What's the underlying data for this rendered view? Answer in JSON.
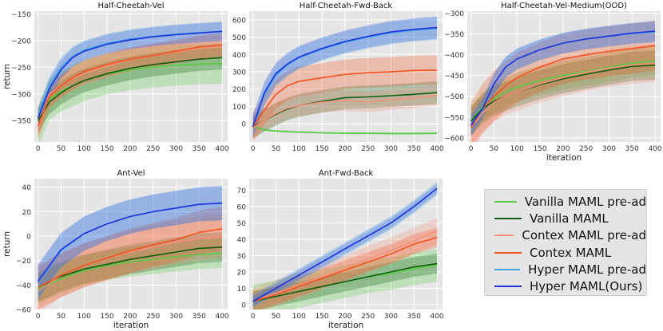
{
  "chart_data": [
    {
      "type": "line",
      "title": "Half-Cheetah-Vel",
      "xlabel": "",
      "ylabel": "return",
      "xlim": [
        -8,
        412
      ],
      "ylim": [
        -390,
        -145
      ],
      "xticks": [
        0,
        50,
        100,
        150,
        200,
        250,
        300,
        350,
        400
      ],
      "yticks": [
        -350,
        -300,
        -250,
        -200,
        -150
      ],
      "series": [
        {
          "name": "Vanilla MAML pre-ad",
          "x": [
            0,
            25,
            50,
            75,
            100,
            150,
            200,
            250,
            300,
            350,
            400
          ],
          "y": [
            -360,
            -310,
            -295,
            -285,
            -275,
            -263,
            -255,
            -250,
            -246,
            -244,
            -243
          ],
          "band": 38
        },
        {
          "name": "Vanilla MAML",
          "x": [
            0,
            25,
            50,
            75,
            100,
            150,
            200,
            250,
            300,
            350,
            400
          ],
          "y": [
            -350,
            -315,
            -298,
            -285,
            -275,
            -262,
            -252,
            -245,
            -240,
            -235,
            -232
          ],
          "band": 22
        },
        {
          "name": "Contex MAML pre-ad",
          "x": [
            0,
            25,
            50,
            75,
            100,
            150,
            200,
            250,
            300,
            350,
            400
          ],
          "y": [
            -365,
            -300,
            -285,
            -272,
            -262,
            -248,
            -236,
            -228,
            -222,
            -215,
            -212
          ],
          "band": 22
        },
        {
          "name": "Contex MAML",
          "x": [
            0,
            25,
            50,
            75,
            100,
            150,
            200,
            250,
            300,
            350,
            400
          ],
          "y": [
            -360,
            -305,
            -285,
            -270,
            -258,
            -245,
            -235,
            -228,
            -220,
            -212,
            -208
          ],
          "band": 22
        },
        {
          "name": "Hyper MAML pre-ad",
          "x": [
            0,
            25,
            50,
            75,
            100,
            150,
            200,
            250,
            300,
            350,
            400
          ],
          "y": [
            -345,
            -285,
            -250,
            -230,
            -218,
            -205,
            -197,
            -192,
            -188,
            -185,
            -183
          ],
          "band": 18
        },
        {
          "name": "Hyper MAML(Ours)",
          "x": [
            0,
            25,
            50,
            75,
            100,
            150,
            200,
            250,
            300,
            350,
            400
          ],
          "y": [
            -345,
            -290,
            -255,
            -232,
            -220,
            -207,
            -199,
            -193,
            -189,
            -186,
            -183
          ],
          "band": 18
        }
      ]
    },
    {
      "type": "line",
      "title": "Half-Cheetah-Fwd-Back",
      "xlabel": "",
      "ylabel": "",
      "xlim": [
        -8,
        412
      ],
      "ylim": [
        -105,
        650
      ],
      "xticks": [
        0,
        50,
        100,
        150,
        200,
        250,
        300,
        350,
        400
      ],
      "yticks": [
        0,
        100,
        200,
        300,
        400,
        500,
        600
      ],
      "series": [
        {
          "name": "Vanilla MAML pre-ad",
          "x": [
            0,
            25,
            50,
            100,
            150,
            200,
            250,
            300,
            350,
            400
          ],
          "y": [
            -15,
            -35,
            -42,
            -48,
            -52,
            -55,
            -55,
            -56,
            -56,
            -55
          ],
          "band": 6
        },
        {
          "name": "Vanilla MAML",
          "x": [
            0,
            25,
            50,
            75,
            100,
            150,
            200,
            250,
            300,
            350,
            400
          ],
          "y": [
            -20,
            20,
            55,
            85,
            105,
            130,
            150,
            155,
            162,
            170,
            180
          ],
          "band": 65
        },
        {
          "name": "Contex MAML pre-ad",
          "x": [
            0,
            25,
            50,
            75,
            100,
            150,
            200,
            250,
            300,
            350,
            400
          ],
          "y": [
            -25,
            20,
            60,
            90,
            105,
            125,
            135,
            125,
            140,
            150,
            165
          ],
          "band": 60
        },
        {
          "name": "Contex MAML",
          "x": [
            0,
            25,
            50,
            75,
            100,
            150,
            200,
            250,
            300,
            350,
            400
          ],
          "y": [
            -20,
            80,
            170,
            220,
            245,
            265,
            285,
            295,
            300,
            308,
            310
          ],
          "band": 85
        },
        {
          "name": "Hyper MAML pre-ad",
          "x": [
            0,
            25,
            50,
            75,
            100,
            150,
            200,
            250,
            300,
            350,
            400
          ],
          "y": [
            -15,
            170,
            280,
            340,
            380,
            430,
            470,
            500,
            525,
            540,
            550
          ],
          "band": 65
        },
        {
          "name": "Hyper MAML(Ours)",
          "x": [
            0,
            25,
            50,
            75,
            100,
            150,
            200,
            250,
            300,
            350,
            400
          ],
          "y": [
            -15,
            180,
            290,
            345,
            385,
            435,
            475,
            505,
            530,
            545,
            555
          ],
          "band": 65
        }
      ]
    },
    {
      "type": "line",
      "title": "Half-Cheetah-Vel-Medium(OOD)",
      "xlabel": "iteration",
      "ylabel": "",
      "xlim": [
        -8,
        412
      ],
      "ylim": [
        -610,
        -295
      ],
      "xticks": [
        0,
        50,
        100,
        150,
        200,
        250,
        300,
        350,
        400
      ],
      "yticks": [
        -600,
        -550,
        -500,
        -450,
        -400,
        -350,
        -300
      ],
      "series": [
        {
          "name": "Vanilla MAML pre-ad",
          "x": [
            0,
            25,
            50,
            75,
            100,
            150,
            200,
            250,
            300,
            350,
            400
          ],
          "y": [
            -560,
            -525,
            -505,
            -490,
            -478,
            -462,
            -450,
            -440,
            -430,
            -420,
            -415
          ],
          "band": 35
        },
        {
          "name": "Vanilla MAML",
          "x": [
            0,
            25,
            50,
            75,
            100,
            150,
            200,
            250,
            300,
            350,
            400
          ],
          "y": [
            -560,
            -530,
            -512,
            -500,
            -490,
            -472,
            -458,
            -447,
            -437,
            -428,
            -425
          ],
          "band": 35
        },
        {
          "name": "Contex MAML pre-ad",
          "x": [
            0,
            25,
            50,
            75,
            100,
            150,
            200,
            250,
            300,
            350,
            400
          ],
          "y": [
            -575,
            -540,
            -515,
            -500,
            -490,
            -470,
            -455,
            -442,
            -432,
            -425,
            -420
          ],
          "band": 45
        },
        {
          "name": "Contex MAML",
          "x": [
            0,
            25,
            50,
            75,
            100,
            150,
            200,
            250,
            300,
            350,
            400
          ],
          "y": [
            -575,
            -530,
            -500,
            -475,
            -455,
            -430,
            -410,
            -400,
            -392,
            -385,
            -378
          ],
          "band": 60
        },
        {
          "name": "Hyper MAML pre-ad",
          "x": [
            0,
            25,
            50,
            75,
            100,
            150,
            200,
            250,
            300,
            350,
            400
          ],
          "y": [
            -570,
            -530,
            -470,
            -430,
            -410,
            -388,
            -372,
            -362,
            -355,
            -349,
            -345
          ],
          "band": 25
        },
        {
          "name": "Hyper MAML(Ours)",
          "x": [
            0,
            25,
            50,
            75,
            100,
            150,
            200,
            250,
            300,
            350,
            400
          ],
          "y": [
            -570,
            -530,
            -470,
            -430,
            -410,
            -388,
            -372,
            -362,
            -355,
            -348,
            -343
          ],
          "band": 25
        }
      ]
    },
    {
      "type": "line",
      "title": "Ant-Vel",
      "xlabel": "iteration",
      "ylabel": "return",
      "xlim": [
        -8,
        412
      ],
      "ylim": [
        -60,
        47
      ],
      "xticks": [
        0,
        50,
        100,
        150,
        200,
        250,
        300,
        350,
        400
      ],
      "yticks": [
        -60,
        -40,
        -20,
        0,
        20,
        40
      ],
      "series": [
        {
          "name": "Vanilla MAML pre-ad",
          "x": [
            0,
            50,
            100,
            150,
            200,
            250,
            300,
            350,
            400
          ],
          "y": [
            -43,
            -35,
            -28,
            -24,
            -21,
            -19,
            -17,
            -15,
            -14
          ],
          "band": 12
        },
        {
          "name": "Vanilla MAML",
          "x": [
            0,
            50,
            100,
            150,
            200,
            250,
            300,
            350,
            400
          ],
          "y": [
            -42,
            -33,
            -27,
            -23,
            -19,
            -16,
            -13,
            -10,
            -9
          ],
          "band": 12
        },
        {
          "name": "Contex MAML pre-ad",
          "x": [
            0,
            50,
            100,
            150,
            200,
            250,
            300,
            350,
            400
          ],
          "y": [
            -45,
            -32,
            -24,
            -18,
            -13,
            -9,
            -5,
            -2,
            0
          ],
          "band": 18
        },
        {
          "name": "Contex MAML",
          "x": [
            0,
            50,
            100,
            150,
            200,
            250,
            300,
            350,
            400
          ],
          "y": [
            -42,
            -32,
            -24,
            -18,
            -12,
            -7,
            -3,
            3,
            6
          ],
          "band": 18
        },
        {
          "name": "Hyper MAML pre-ad",
          "x": [
            0,
            50,
            100,
            150,
            200,
            250,
            300,
            350,
            400
          ],
          "y": [
            -38,
            -12,
            2,
            10,
            16,
            20,
            23,
            26,
            27
          ],
          "band": 14
        },
        {
          "name": "Hyper MAML(Ours)",
          "x": [
            0,
            50,
            100,
            150,
            200,
            250,
            300,
            350,
            400
          ],
          "y": [
            -37,
            -11,
            2,
            10,
            16,
            20,
            23,
            26,
            27
          ],
          "band": 14
        }
      ]
    },
    {
      "type": "line",
      "title": "Ant-Fwd-Back",
      "xlabel": "iteration",
      "ylabel": "",
      "xlim": [
        -8,
        412
      ],
      "ylim": [
        -3,
        77
      ],
      "xticks": [
        0,
        50,
        100,
        150,
        200,
        250,
        300,
        350,
        400
      ],
      "yticks": [
        0,
        10,
        20,
        30,
        40,
        50,
        60,
        70
      ],
      "series": [
        {
          "name": "Vanilla MAML pre-ad",
          "x": [
            0,
            50,
            100,
            150,
            200,
            250,
            300,
            350,
            400
          ],
          "y": [
            2,
            5,
            8,
            11,
            14,
            17,
            19,
            22,
            24
          ],
          "band": 10
        },
        {
          "name": "Vanilla MAML",
          "x": [
            0,
            50,
            100,
            150,
            200,
            250,
            300,
            350,
            400
          ],
          "y": [
            2,
            5,
            8,
            11,
            14,
            17,
            20,
            23,
            25
          ],
          "band": 6
        },
        {
          "name": "Contex MAML pre-ad",
          "x": [
            0,
            50,
            100,
            150,
            200,
            250,
            300,
            350,
            400
          ],
          "y": [
            2,
            7,
            12,
            17,
            22,
            28,
            33,
            39,
            45
          ],
          "band": 8
        },
        {
          "name": "Contex MAML",
          "x": [
            0,
            50,
            100,
            150,
            200,
            250,
            300,
            350,
            400
          ],
          "y": [
            2,
            6,
            11,
            16,
            21,
            26,
            31,
            37,
            41
          ],
          "band": 6
        },
        {
          "name": "Hyper MAML pre-ad",
          "x": [
            0,
            50,
            100,
            150,
            200,
            250,
            300,
            350,
            400
          ],
          "y": [
            2,
            10,
            18,
            26,
            34,
            42,
            50,
            60,
            71
          ],
          "band": 4
        },
        {
          "name": "Hyper MAML(Ours)",
          "x": [
            0,
            50,
            100,
            150,
            200,
            250,
            300,
            350,
            400
          ],
          "y": [
            2,
            10,
            18,
            26,
            34,
            42,
            50,
            60,
            71
          ],
          "band": 3
        }
      ]
    }
  ],
  "legend": {
    "items": [
      {
        "label": "Vanilla MAML pre-ad",
        "color": "#55cc44"
      },
      {
        "label": "Vanilla MAML",
        "color": "#0f5c0f"
      },
      {
        "label": "Contex MAML pre-ad",
        "color": "#f4907a"
      },
      {
        "label": "Contex MAML",
        "color": "#f4511e"
      },
      {
        "label": "Hyper MAML pre-ad",
        "color": "#3fa4e6"
      },
      {
        "label": "Hyper MAML(Ours)",
        "color": "#1f2fdc"
      }
    ]
  },
  "colors": {
    "plot_bg": "#e5e5e5",
    "grid": "#ffffff",
    "band_alphas": [
      0.28,
      0.28,
      0.28,
      0.28,
      0.32,
      0.18
    ]
  }
}
